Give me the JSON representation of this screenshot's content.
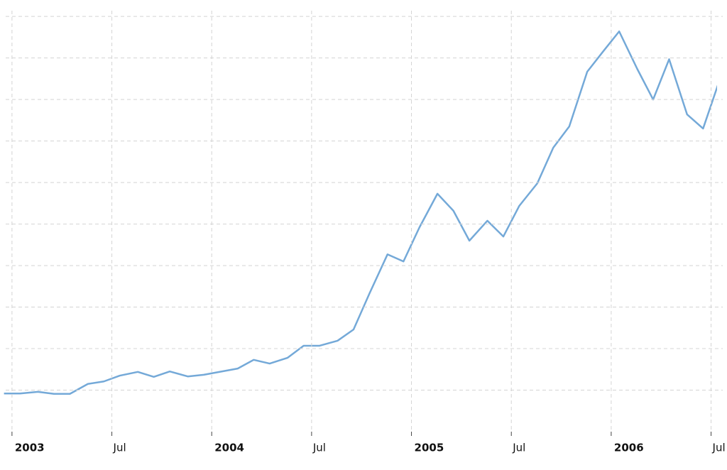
{
  "chart_data": {
    "type": "line",
    "x": [
      2002.96,
      2003.04,
      2003.13,
      2003.21,
      2003.29,
      2003.38,
      2003.46,
      2003.54,
      2003.63,
      2003.71,
      2003.79,
      2003.88,
      2003.96,
      2004.04,
      2004.13,
      2004.21,
      2004.29,
      2004.38,
      2004.46,
      2004.54,
      2004.63,
      2004.71,
      2004.79,
      2004.88,
      2004.96,
      2005.04,
      2005.13,
      2005.21,
      2005.29,
      2005.38,
      2005.46,
      2005.54,
      2005.63,
      2005.71,
      2005.79,
      2005.88,
      2005.96,
      2006.04,
      2006.13,
      2006.21,
      2006.29,
      2006.38,
      2006.46,
      2006.54
    ],
    "values": [
      0.92,
      0.92,
      0.96,
      0.91,
      0.91,
      1.15,
      1.21,
      1.35,
      1.44,
      1.32,
      1.45,
      1.33,
      1.37,
      1.44,
      1.52,
      1.73,
      1.64,
      1.78,
      2.07,
      2.07,
      2.19,
      2.46,
      3.33,
      4.27,
      4.1,
      4.92,
      5.73,
      5.32,
      4.6,
      5.08,
      4.7,
      5.44,
      5.98,
      6.84,
      7.35,
      8.67,
      9.16,
      9.64,
      8.74,
      8.0,
      8.97,
      7.64,
      7.3,
      8.43
    ],
    "color": "#74a9d8",
    "xlim": [
      2002.94,
      2006.53
    ],
    "xticks": [
      2003,
      {
        "value": 2003.5,
        "label": "Jul"
      },
      2004,
      {
        "value": 2004.5,
        "label": "Jul"
      },
      2005,
      {
        "value": 2005.5,
        "label": "Jul"
      },
      2006,
      {
        "value": 2006.5,
        "label": "Jul"
      }
    ],
    "ylim": [
      0,
      10.14
    ],
    "yticks": [
      1,
      2,
      3,
      4,
      5,
      6,
      7,
      8,
      9,
      10
    ],
    "ytick_labels": false,
    "grid": true
  }
}
